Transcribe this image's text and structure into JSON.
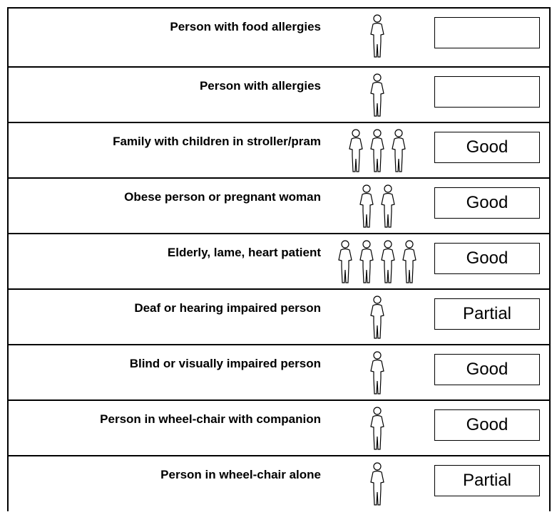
{
  "rows": [
    {
      "label": "Person with food allergies"
    },
    {
      "label": "Person with allergies"
    },
    {
      "label": "Family with children  in stroller/pram",
      "rating": "Good"
    },
    {
      "label": "Obese person or pregnant woman",
      "rating": "Good"
    },
    {
      "label": "Elderly, lame, heart patient",
      "rating": "Good"
    },
    {
      "label": "Deaf or hearing impaired person",
      "rating": "Partial"
    },
    {
      "label": "Blind or  visually impaired person",
      "rating": "Good"
    },
    {
      "label": "Person  in  wheel-chair  with companion",
      "rating": "Good"
    },
    {
      "label": "Person  in  wheel-chair  alone",
      "rating": "Partial"
    }
  ]
}
